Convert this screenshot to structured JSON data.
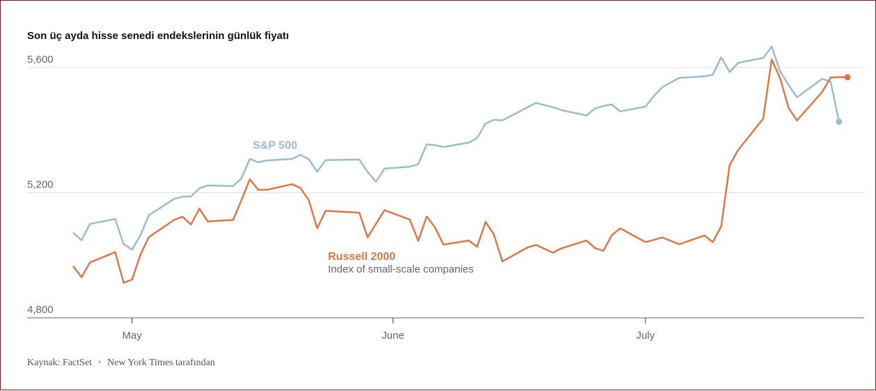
{
  "title": "Son üç ayda hisse senedi endekslerinin günlük fiyatı",
  "footer": {
    "source": "Kaynak: FactSet",
    "credit": "New York Times tarafından"
  },
  "colors": {
    "sp500": "#9bbccd",
    "russell": "#e07647",
    "grid": "#e2e2e2",
    "axis": "#999999"
  },
  "chart_data": {
    "type": "line",
    "title": "Son üç ayda hisse senedi endekslerinin günlük fiyatı",
    "xlabel": "",
    "ylabel": "",
    "x_range": [
      "2024-04-24",
      "2024-07-25"
    ],
    "ylim": [
      4800,
      5680
    ],
    "yticks": [
      4800,
      5200,
      5600
    ],
    "ytick_labels": [
      "4,800",
      "5,200",
      "5,600"
    ],
    "xticks": [
      {
        "date": "2024-05-01",
        "label": "May"
      },
      {
        "date": "2024-06-01",
        "label": "June"
      },
      {
        "date": "2024-07-01",
        "label": "July"
      }
    ],
    "grid": true,
    "series": [
      {
        "name": "S&P 500",
        "color": "#9bbccd",
        "points": [
          [
            "2024-04-24",
            5072
          ],
          [
            "2024-04-25",
            5048
          ],
          [
            "2024-04-26",
            5100
          ],
          [
            "2024-04-29",
            5116
          ],
          [
            "2024-04-30",
            5036
          ],
          [
            "2024-05-01",
            5018
          ],
          [
            "2024-05-02",
            5064
          ],
          [
            "2024-05-03",
            5128
          ],
          [
            "2024-05-06",
            5180
          ],
          [
            "2024-05-07",
            5187
          ],
          [
            "2024-05-08",
            5188
          ],
          [
            "2024-05-09",
            5214
          ],
          [
            "2024-05-10",
            5223
          ],
          [
            "2024-05-13",
            5221
          ],
          [
            "2024-05-14",
            5246
          ],
          [
            "2024-05-15",
            5308
          ],
          [
            "2024-05-16",
            5297
          ],
          [
            "2024-05-17",
            5303
          ],
          [
            "2024-05-20",
            5308
          ],
          [
            "2024-05-21",
            5321
          ],
          [
            "2024-05-22",
            5307
          ],
          [
            "2024-05-23",
            5267
          ],
          [
            "2024-05-24",
            5304
          ],
          [
            "2024-05-28",
            5306
          ],
          [
            "2024-05-29",
            5266
          ],
          [
            "2024-05-30",
            5235
          ],
          [
            "2024-05-31",
            5277
          ],
          [
            "2024-06-03",
            5283
          ],
          [
            "2024-06-04",
            5291
          ],
          [
            "2024-06-05",
            5354
          ],
          [
            "2024-06-06",
            5352
          ],
          [
            "2024-06-07",
            5346
          ],
          [
            "2024-06-10",
            5360
          ],
          [
            "2024-06-11",
            5375
          ],
          [
            "2024-06-12",
            5421
          ],
          [
            "2024-06-13",
            5433
          ],
          [
            "2024-06-14",
            5431
          ],
          [
            "2024-06-17",
            5473
          ],
          [
            "2024-06-18",
            5487
          ],
          [
            "2024-06-20",
            5473
          ],
          [
            "2024-06-21",
            5464
          ],
          [
            "2024-06-24",
            5447
          ],
          [
            "2024-06-25",
            5469
          ],
          [
            "2024-06-26",
            5477
          ],
          [
            "2024-06-27",
            5482
          ],
          [
            "2024-06-28",
            5460
          ],
          [
            "2024-07-01",
            5475
          ],
          [
            "2024-07-02",
            5509
          ],
          [
            "2024-07-03",
            5537
          ],
          [
            "2024-07-05",
            5567
          ],
          [
            "2024-07-08",
            5572
          ],
          [
            "2024-07-09",
            5577
          ],
          [
            "2024-07-10",
            5633
          ],
          [
            "2024-07-11",
            5585
          ],
          [
            "2024-07-12",
            5615
          ],
          [
            "2024-07-15",
            5631
          ],
          [
            "2024-07-16",
            5667
          ],
          [
            "2024-07-17",
            5588
          ],
          [
            "2024-07-18",
            5544
          ],
          [
            "2024-07-19",
            5505
          ],
          [
            "2024-07-22",
            5564
          ],
          [
            "2024-07-23",
            5555
          ],
          [
            "2024-07-24",
            5427
          ]
        ]
      },
      {
        "name": "Russell 2000",
        "color": "#e07647",
        "points": [
          [
            "2024-04-24",
            4965
          ],
          [
            "2024-04-25",
            4930
          ],
          [
            "2024-04-26",
            4977
          ],
          [
            "2024-04-29",
            5010
          ],
          [
            "2024-04-30",
            4912
          ],
          [
            "2024-05-01",
            4922
          ],
          [
            "2024-05-02",
            5002
          ],
          [
            "2024-05-03",
            5058
          ],
          [
            "2024-05-06",
            5113
          ],
          [
            "2024-05-07",
            5123
          ],
          [
            "2024-05-08",
            5098
          ],
          [
            "2024-05-09",
            5149
          ],
          [
            "2024-05-10",
            5108
          ],
          [
            "2024-05-13",
            5113
          ],
          [
            "2024-05-14",
            5176
          ],
          [
            "2024-05-15",
            5243
          ],
          [
            "2024-05-16",
            5209
          ],
          [
            "2024-05-17",
            5209
          ],
          [
            "2024-05-20",
            5227
          ],
          [
            "2024-05-21",
            5215
          ],
          [
            "2024-05-22",
            5176
          ],
          [
            "2024-05-23",
            5086
          ],
          [
            "2024-05-24",
            5142
          ],
          [
            "2024-05-28",
            5136
          ],
          [
            "2024-05-29",
            5057
          ],
          [
            "2024-05-30",
            5101
          ],
          [
            "2024-05-31",
            5144
          ],
          [
            "2024-06-03",
            5114
          ],
          [
            "2024-06-04",
            5046
          ],
          [
            "2024-06-05",
            5124
          ],
          [
            "2024-06-06",
            5089
          ],
          [
            "2024-06-07",
            5034
          ],
          [
            "2024-06-10",
            5047
          ],
          [
            "2024-06-11",
            5027
          ],
          [
            "2024-06-12",
            5107
          ],
          [
            "2024-06-13",
            5066
          ],
          [
            "2024-06-14",
            4980
          ],
          [
            "2024-06-17",
            5025
          ],
          [
            "2024-06-18",
            5033
          ],
          [
            "2024-06-20",
            5008
          ],
          [
            "2024-06-21",
            5022
          ],
          [
            "2024-06-24",
            5047
          ],
          [
            "2024-06-25",
            5023
          ],
          [
            "2024-06-26",
            5014
          ],
          [
            "2024-06-27",
            5064
          ],
          [
            "2024-06-28",
            5086
          ],
          [
            "2024-07-01",
            5042
          ],
          [
            "2024-07-02",
            5049
          ],
          [
            "2024-07-03",
            5057
          ],
          [
            "2024-07-05",
            5035
          ],
          [
            "2024-07-08",
            5063
          ],
          [
            "2024-07-09",
            5042
          ],
          [
            "2024-07-10",
            5092
          ],
          [
            "2024-07-11",
            5288
          ],
          [
            "2024-07-12",
            5336
          ],
          [
            "2024-07-15",
            5437
          ],
          [
            "2024-07-16",
            5626
          ],
          [
            "2024-07-17",
            5566
          ],
          [
            "2024-07-18",
            5471
          ],
          [
            "2024-07-19",
            5431
          ],
          [
            "2024-07-22",
            5522
          ],
          [
            "2024-07-23",
            5568
          ],
          [
            "2024-07-24",
            5569
          ],
          [
            "2024-07-25",
            5569
          ]
        ]
      }
    ],
    "annotations": {
      "sp500_label": "S&P 500",
      "russell_label": "Russell 2000",
      "russell_sublabel": "Index of small-scale companies"
    }
  }
}
